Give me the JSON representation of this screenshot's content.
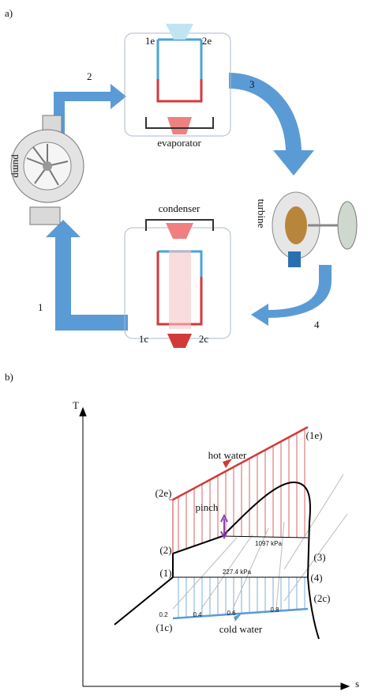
{
  "panel_a": {
    "label": "a)",
    "pump": "pump",
    "turbine": "turbine",
    "evaporator": {
      "label": "evaporator",
      "inlet": "1e",
      "outlet": "2e"
    },
    "condenser": {
      "label": "condenser",
      "inlet": "1c",
      "outlet": "2c"
    },
    "states": [
      "1",
      "2",
      "3",
      "4"
    ]
  },
  "panel_b": {
    "label": "b)",
    "y_axis": "T",
    "x_axis": "s",
    "points": {
      "1e": "(1e)",
      "2e": "(2e)",
      "1": "(1)",
      "2": "(2)",
      "3": "(3)",
      "4": "(4)",
      "1c": "(1c)",
      "2c": "(2c)"
    },
    "hot_water": "hot water",
    "cold_water": "cold water",
    "pinch": "pinch",
    "high_pressure": "1097 kPa",
    "low_pressure": "227.4 kPa",
    "quality_labels": [
      "0.2",
      "0.4",
      "0.6",
      "0.8"
    ]
  }
}
